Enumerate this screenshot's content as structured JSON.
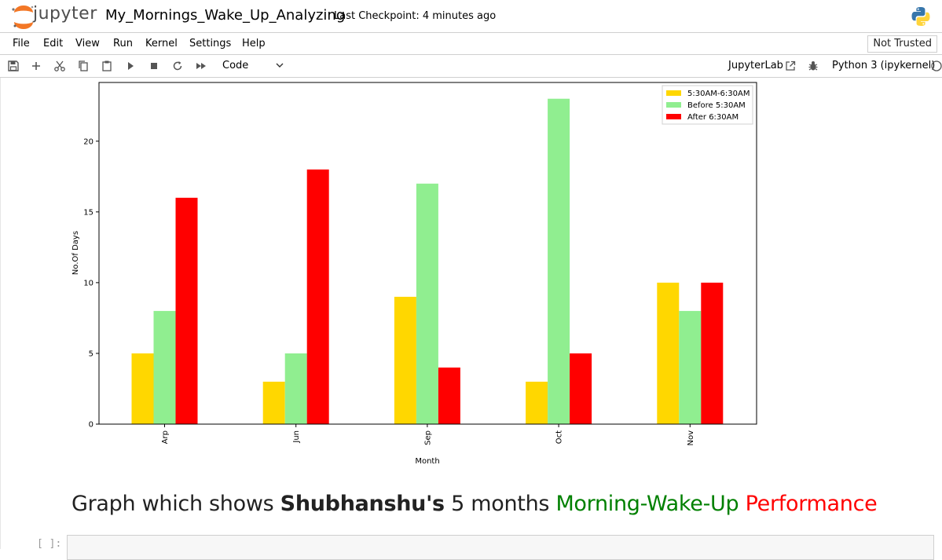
{
  "header": {
    "logo_text": "jupyter",
    "notebook_title": "My_Mornings_Wake_Up_Analyzing",
    "checkpoint": "Last Checkpoint: 4 minutes ago"
  },
  "menu": {
    "items": [
      "File",
      "Edit",
      "View",
      "Run",
      "Kernel",
      "Settings",
      "Help"
    ],
    "trusted_label": "Not Trusted"
  },
  "toolbar": {
    "cell_type": "Code",
    "jupyterlab_label": "JupyterLab",
    "kernel_label": "Python 3 (ipykernel)"
  },
  "colors": {
    "gold": "#FFD700",
    "lightgreen": "#90EE90",
    "red": "#FF0000",
    "heading_green": "#008000",
    "heading_red": "#FF0000"
  },
  "chart_data": {
    "type": "bar",
    "categories": [
      "Arp",
      "Jun",
      "Sep",
      "Oct",
      "Nov"
    ],
    "series": [
      {
        "name": "5:30AM-6:30AM",
        "values": [
          5,
          3,
          9,
          3,
          10
        ],
        "color": "#FFD700"
      },
      {
        "name": "Before 5:30AM",
        "values": [
          8,
          5,
          17,
          23,
          8
        ],
        "color": "#90EE90"
      },
      {
        "name": "After 6:30AM",
        "values": [
          16,
          18,
          4,
          5,
          10
        ],
        "color": "#FF0000"
      }
    ],
    "xlabel": "Month",
    "ylabel": "No.Of Days",
    "ylim": [
      0,
      24.15
    ],
    "yticks": [
      0,
      5,
      10,
      15,
      20
    ],
    "legend": "top-right",
    "grid": false
  },
  "markdown": {
    "part1": "Graph which shows ",
    "bold": "Shubhanshu's",
    "part2": " 5 months ",
    "green": "Morning-Wake-Up",
    "space": " ",
    "red": "Performance"
  },
  "next_cell": {
    "prompt": "[ ]:"
  }
}
